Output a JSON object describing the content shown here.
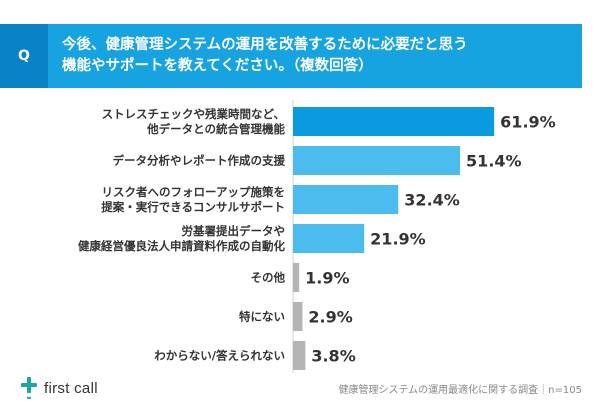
{
  "header": {
    "badge": "Q",
    "question_line1": "今後、健康管理システムの運用を改善するために必要だと思う",
    "question_line2": "機能やサポートを教えてください。（複数回答）"
  },
  "chart_data": {
    "type": "bar",
    "orientation": "horizontal",
    "categories": [
      [
        "ストレスチェックや残業時間など、",
        "他データとの統合管理機能"
      ],
      [
        "データ分析やレポート作成の支援"
      ],
      [
        "リスク者へのフォローアップ施策を",
        "提案・実行できるコンサルサポート"
      ],
      [
        "労基署提出データや",
        "健康経営優良法人申請資料作成の自動化"
      ],
      [
        "その他"
      ],
      [
        "特にない"
      ],
      [
        "わからない/答えられない"
      ]
    ],
    "values": [
      61.9,
      51.4,
      32.4,
      21.9,
      1.9,
      2.9,
      3.8
    ],
    "value_labels": [
      "61.9%",
      "51.4%",
      "32.4%",
      "21.9%",
      "1.9%",
      "2.9%",
      "3.8%"
    ],
    "bar_colors": [
      "#0a9ade",
      "#4cbcef",
      "#4cbcef",
      "#4cbcef",
      "#b4b4b4",
      "#b4b4b4",
      "#b4b4b4"
    ],
    "xlim": [
      0,
      100
    ]
  },
  "footer": {
    "logo_text": "first call",
    "note": "健康管理システムの運用最適化に関する調査｜n=105"
  },
  "colors": {
    "header_badge": "#0a82c8",
    "header_bg": "#16a3e0",
    "logo_accent": "#1aa8a0"
  }
}
